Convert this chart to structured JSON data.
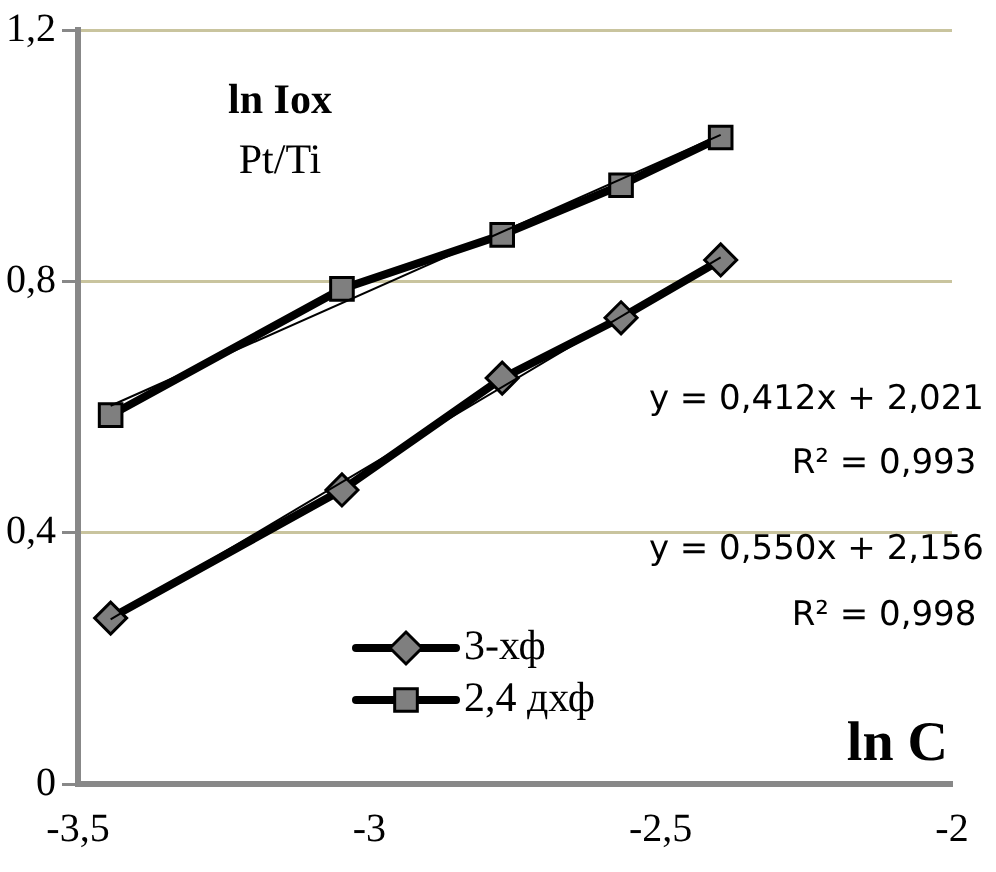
{
  "chart_data": {
    "type": "line",
    "title": "Pt/Ti",
    "ylabel": "ln Iox",
    "xlabel": "ln C",
    "xlim": [
      -3.5,
      -2
    ],
    "xticks": [
      {
        "value": -3.5,
        "label": "-3,5"
      },
      {
        "value": -3,
        "label": "-3"
      },
      {
        "value": -2.5,
        "label": "-2,5"
      },
      {
        "value": -2,
        "label": "-2"
      }
    ],
    "ylim": [
      0,
      1.2
    ],
    "yticks": [
      {
        "value": 0,
        "label": "0"
      },
      {
        "value": 0.4,
        "label": "0,4"
      },
      {
        "value": 0.8,
        "label": "0,8"
      },
      {
        "value": 1.2,
        "label": "1,2"
      }
    ],
    "grid": "y",
    "legend": "bottom left",
    "series": [
      {
        "name": "3-хф",
        "color": "#000000",
        "marker": "diamond",
        "x": [
          -3.444,
          -3.047,
          -2.772,
          -2.568,
          -2.397
        ],
        "values": [
          0.264,
          0.468,
          0.646,
          0.742,
          0.834
        ]
      },
      {
        "name": "2,4 дхф",
        "color": "#000000",
        "marker": "square",
        "x": [
          -3.444,
          -3.047,
          -2.772,
          -2.568,
          -2.397
        ],
        "values": [
          0.587,
          0.788,
          0.874,
          0.953,
          1.029
        ]
      },
      {
        "color": "#000000",
        "marker": "none",
        "x": [
          -3.444,
          -2.397
        ],
        "values": [
          0.602,
          1.033
        ]
      },
      {
        "color": "#000000",
        "marker": "none",
        "x": [
          -3.444,
          -2.397
        ],
        "values": [
          0.262,
          0.838
        ]
      }
    ],
    "annotations": [
      "y = 0,412x + 2,021",
      "R² = 0,993",
      "y = 0,550x + 2,156",
      "R² = 0,998"
    ]
  }
}
